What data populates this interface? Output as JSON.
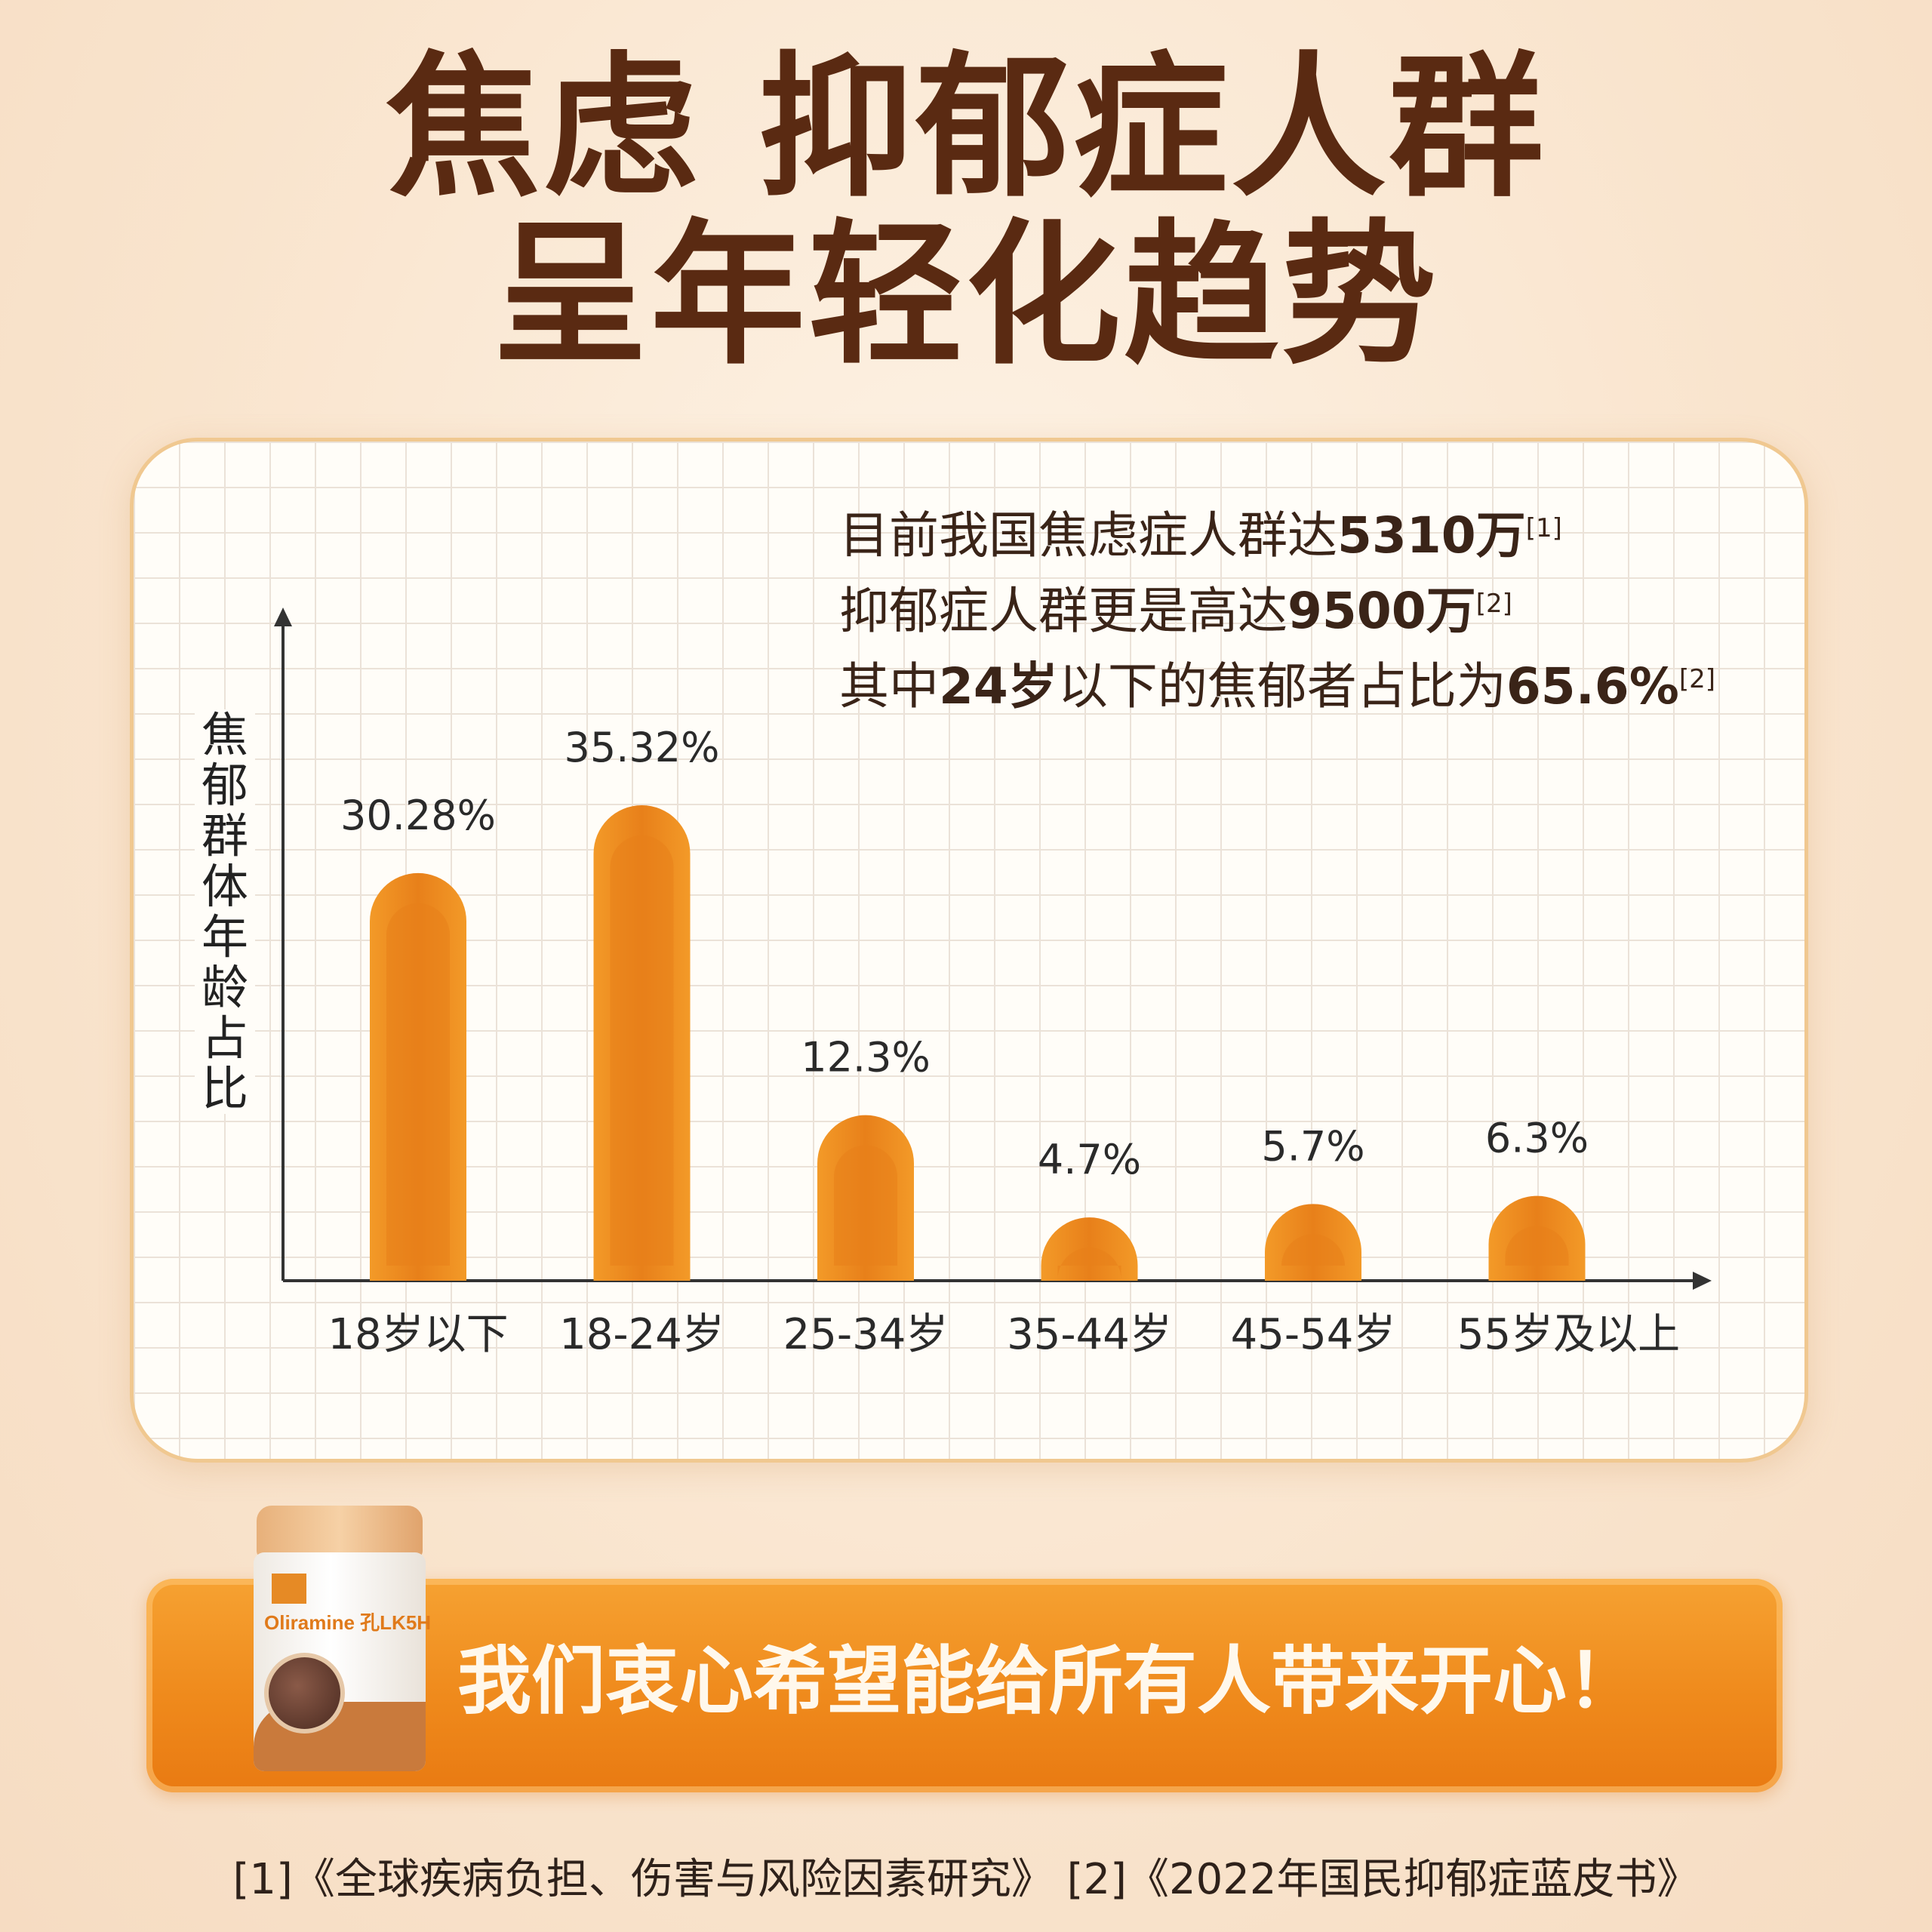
{
  "title": {
    "line1": "焦虑 抑郁症人群",
    "line2": "呈年轻化趋势"
  },
  "stats": {
    "line1_text": "目前我国焦虑症人群达",
    "line1_value": "5310万",
    "line1_ref": "[1]",
    "line2_text": "抑郁症人群更是高达",
    "line2_value": "9500万",
    "line2_ref": "[2]",
    "line3_prefix": "其中",
    "line3_age": "24岁",
    "line3_text": "以下的焦郁者占比为",
    "line3_value": "65.6%",
    "line3_ref": "[2]"
  },
  "chart_data": {
    "type": "bar",
    "ylabel": "焦郁群体年龄占比",
    "categories": [
      "18岁以下",
      "18-24岁",
      "25-34岁",
      "35-44岁",
      "45-54岁",
      "55岁及以上"
    ],
    "values": [
      30.28,
      35.32,
      12.3,
      4.7,
      5.7,
      6.3
    ],
    "value_labels": [
      "30.28%",
      "35.32%",
      "12.3%",
      "4.7%",
      "5.7%",
      "6.3%"
    ],
    "bar_color": "#f39a28",
    "bar_highlight": "#e8801a",
    "grid": true
  },
  "banner": {
    "text": "我们衷心希望能给所有人带来开心！"
  },
  "product": {
    "brand": "Oliramine 孔LK5H"
  },
  "references": "[1]《全球疾病负担、伤害与风险因素研究》 [2]《2022年国民抑郁症蓝皮书》",
  "colors": {
    "title": "#5a2a12",
    "accent": "#f39a28",
    "background": "#fbe9d6"
  }
}
